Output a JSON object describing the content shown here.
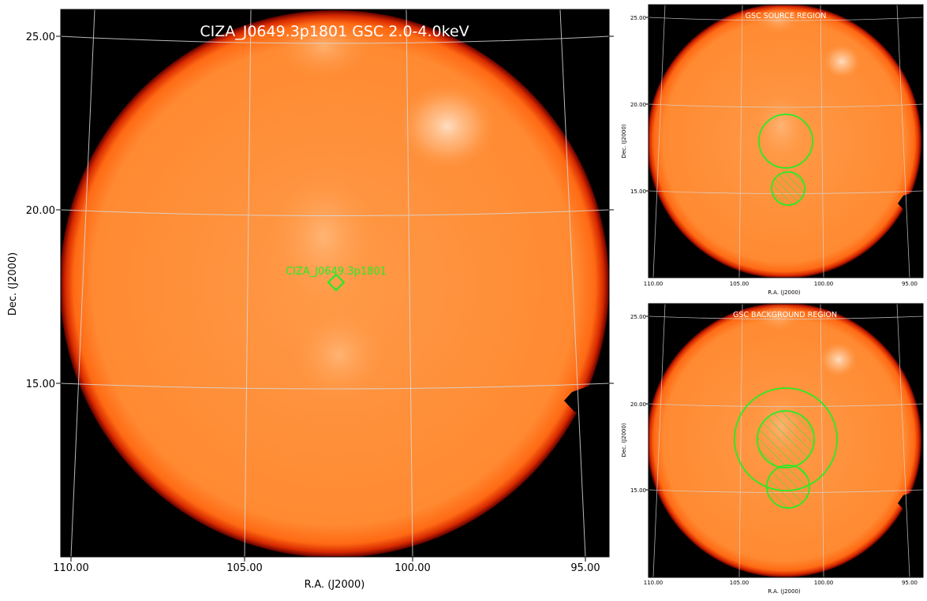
{
  "main": {
    "title": "CIZA_J0649.3p1801 GSC 2.0-4.0keV",
    "xlabel": "R.A. (J2000)",
    "ylabel": "Dec. (J2000)",
    "xticks": [
      "110.00",
      "105.00",
      "100.00",
      "95.00"
    ],
    "yticks": [
      "25.00",
      "20.00",
      "15.00"
    ],
    "source_label": "CIZA_J0649.3p1801"
  },
  "source_panel": {
    "title": "GSC SOURCE REGION",
    "xlabel": "R.A. (J2000)",
    "ylabel": "Dec. (J2000)",
    "xticks": [
      "110.00",
      "105.00",
      "100.00",
      "95.00"
    ],
    "yticks": [
      "25.00",
      "20.00",
      "15.00"
    ]
  },
  "background_panel": {
    "title": "GSC BACKGROUND REGION",
    "xlabel": "R.A. (J2000)",
    "ylabel": "Dec. (J2000)",
    "xticks": [
      "110.00",
      "105.00",
      "100.00",
      "95.00"
    ],
    "yticks": [
      "25.00",
      "20.00",
      "15.00"
    ]
  },
  "colors": {
    "disk": "#ff7f1e",
    "disk_edge": "#b01800",
    "background": "#000000",
    "region": "#22ee22",
    "grid": "#d8d8d8"
  },
  "icons": [
    "diamond-marker-icon",
    "circle-region-icon",
    "hatched-exclusion-icon"
  ]
}
